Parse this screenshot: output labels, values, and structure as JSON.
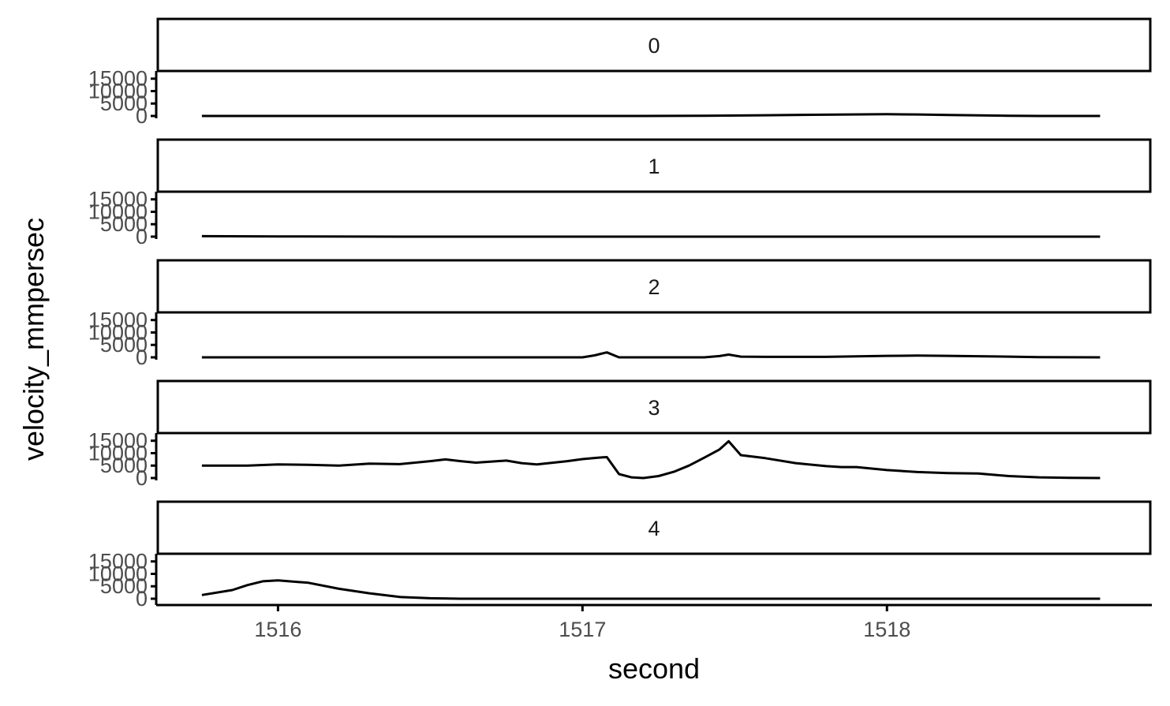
{
  "chart_data": {
    "type": "line",
    "xlabel": "second",
    "ylabel": "velocity_mmpersec",
    "xlim": [
      1515.6,
      1518.87
    ],
    "ylim": [
      0,
      16500
    ],
    "x_ticks": [
      1516,
      1517,
      1518
    ],
    "x_tick_labels": [
      "1516",
      "1517",
      "1518"
    ],
    "y_ticks": [
      0,
      5000,
      10000,
      15000
    ],
    "y_tick_labels": [
      "0",
      "5000",
      "10000",
      "15000"
    ],
    "facets": [
      {
        "label": "0",
        "x": [
          1515.75,
          1516.0,
          1516.5,
          1517.0,
          1517.2,
          1517.4,
          1517.6,
          1517.8,
          1518.0,
          1518.1,
          1518.2,
          1518.4,
          1518.5,
          1518.7
        ],
        "y": [
          0,
          0,
          0,
          0,
          0,
          100,
          300,
          500,
          700,
          600,
          400,
          100,
          0,
          0
        ]
      },
      {
        "label": "1",
        "x": [
          1515.75,
          1516.0,
          1516.5,
          1517.0,
          1517.5,
          1518.0,
          1518.5,
          1518.7
        ],
        "y": [
          200,
          100,
          0,
          0,
          0,
          0,
          0,
          0
        ]
      },
      {
        "label": "2",
        "x": [
          1515.75,
          1516.0,
          1516.5,
          1517.0,
          1517.04,
          1517.08,
          1517.12,
          1517.2,
          1517.3,
          1517.4,
          1517.45,
          1517.48,
          1517.52,
          1517.6,
          1517.8,
          1518.0,
          1518.1,
          1518.2,
          1518.4,
          1518.5,
          1518.7
        ],
        "y": [
          0,
          0,
          0,
          0,
          800,
          2000,
          0,
          0,
          0,
          0,
          500,
          1100,
          300,
          200,
          200,
          600,
          700,
          600,
          300,
          100,
          0
        ]
      },
      {
        "label": "3",
        "x": [
          1515.75,
          1515.9,
          1516.0,
          1516.1,
          1516.2,
          1516.3,
          1516.4,
          1516.5,
          1516.55,
          1516.6,
          1516.65,
          1516.75,
          1516.8,
          1516.85,
          1516.95,
          1517.0,
          1517.05,
          1517.08,
          1517.12,
          1517.16,
          1517.2,
          1517.25,
          1517.3,
          1517.35,
          1517.4,
          1517.45,
          1517.48,
          1517.52,
          1517.6,
          1517.7,
          1517.8,
          1517.85,
          1517.9,
          1518.0,
          1518.1,
          1518.2,
          1518.3,
          1518.4,
          1518.5,
          1518.6,
          1518.7
        ],
        "y": [
          5000,
          5000,
          5500,
          5300,
          5000,
          5800,
          5600,
          6800,
          7500,
          6800,
          6200,
          7000,
          6000,
          5500,
          6800,
          7600,
          8200,
          8400,
          1600,
          300,
          0,
          800,
          2500,
          5000,
          8200,
          11500,
          14800,
          9200,
          8000,
          6000,
          4800,
          4400,
          4400,
          3200,
          2400,
          2000,
          1800,
          800,
          300,
          100,
          0
        ]
      },
      {
        "label": "4",
        "x": [
          1515.75,
          1515.85,
          1515.9,
          1515.95,
          1516.0,
          1516.1,
          1516.2,
          1516.3,
          1516.4,
          1516.5,
          1516.6,
          1516.7,
          1517.0,
          1517.5,
          1518.0,
          1518.5,
          1518.7
        ],
        "y": [
          1500,
          3500,
          5500,
          7000,
          7400,
          6400,
          4000,
          2200,
          700,
          200,
          0,
          0,
          0,
          0,
          0,
          0,
          0
        ]
      }
    ]
  }
}
